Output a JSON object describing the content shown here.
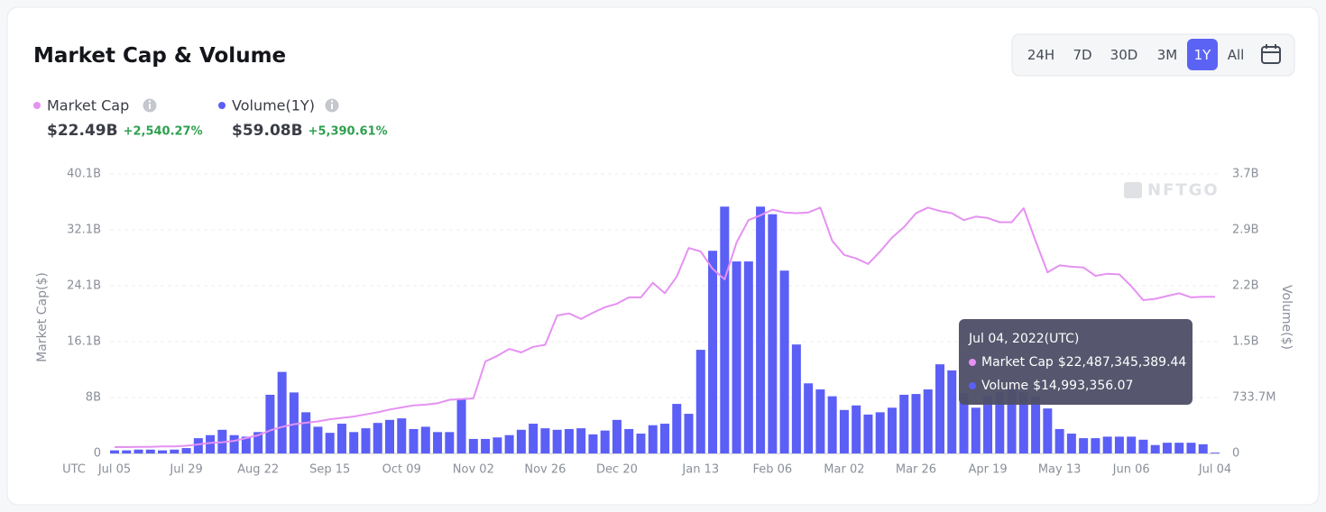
{
  "header": {
    "title": "Market Cap & Volume",
    "periods": [
      "24H",
      "7D",
      "30D",
      "3M",
      "1Y",
      "All"
    ],
    "active_period": "1Y"
  },
  "summary": {
    "market_cap": {
      "value": "$22.49B",
      "change": "+2,540.27%"
    },
    "volume": {
      "label": "Volume(1Y)",
      "value": "$59.08B",
      "change": "+5,390.61%"
    }
  },
  "chart_data": {
    "type": "combo",
    "y_label": "Market Cap($)",
    "y2_label": "Volume($)",
    "x_label": "UTC",
    "watermark": "NFTGO",
    "grid": true,
    "categories": [
      "Jul 05",
      null,
      null,
      null,
      null,
      null,
      "Jul 29",
      null,
      null,
      null,
      null,
      null,
      "Aug 22",
      null,
      null,
      null,
      null,
      null,
      "Sep 15",
      null,
      null,
      null,
      null,
      null,
      "Oct 09",
      null,
      null,
      null,
      null,
      null,
      "Nov 02",
      null,
      null,
      null,
      null,
      null,
      "Nov 26",
      null,
      null,
      null,
      null,
      null,
      "Dec 20",
      null,
      null,
      null,
      null,
      null,
      null,
      "Jan 13",
      null,
      null,
      null,
      null,
      null,
      "Feb 06",
      null,
      null,
      null,
      null,
      null,
      "Mar 02",
      null,
      null,
      null,
      null,
      null,
      "Mar 26",
      null,
      null,
      null,
      null,
      null,
      "Apr 19",
      null,
      null,
      null,
      null,
      null,
      "May 13",
      null,
      null,
      null,
      null,
      null,
      "Jun 06",
      null,
      null,
      null,
      null,
      null,
      null,
      "Jul 04"
    ],
    "ylim": [
      0,
      40.125
    ],
    "yticks": [
      {
        "value": 0,
        "label": "0"
      },
      {
        "value": 8.025,
        "label": "8B"
      },
      {
        "value": 16.05,
        "label": "16.1B"
      },
      {
        "value": 24.075,
        "label": "24.1B"
      },
      {
        "value": 32.1,
        "label": "32.1B"
      },
      {
        "value": 40.125,
        "label": "40.1B"
      }
    ],
    "y2lim": [
      0,
      3.6685
    ],
    "y2ticks": [
      {
        "value": 0,
        "label": "0"
      },
      {
        "value": 0.7337,
        "label": "733.7M"
      },
      {
        "value": 1.4674,
        "label": "1.5B"
      },
      {
        "value": 2.2011,
        "label": "2.2B"
      },
      {
        "value": 2.9348,
        "label": "2.9B"
      },
      {
        "value": 3.6685,
        "label": "3.7B"
      }
    ],
    "series": [
      {
        "name": "Market Cap",
        "type": "line",
        "color": "#e591f2",
        "values": [
          0.9,
          0.9,
          0.95,
          0.95,
          1.0,
          1.0,
          1.1,
          1.3,
          1.5,
          1.6,
          1.8,
          2.2,
          2.6,
          3.3,
          3.8,
          4.2,
          4.4,
          4.6,
          4.9,
          5.1,
          5.3,
          5.6,
          5.9,
          6.3,
          6.6,
          6.9,
          7.0,
          7.2,
          7.7,
          7.8,
          7.9,
          13.2,
          14.0,
          15.0,
          14.5,
          15.3,
          15.6,
          19.8,
          20.1,
          19.3,
          20.2,
          21.0,
          21.5,
          22.4,
          22.4,
          24.5,
          23.0,
          25.4,
          29.5,
          29.0,
          26.5,
          25.0,
          30.3,
          33.5,
          34.2,
          35.0,
          34.6,
          34.5,
          34.6,
          35.3,
          30.5,
          28.5,
          28.0,
          27.2,
          29.0,
          31.0,
          32.5,
          34.5,
          35.3,
          34.8,
          34.5,
          33.5,
          34.0,
          33.8,
          33.2,
          33.2,
          35.2,
          30.5,
          26.0,
          27.0,
          26.8,
          26.7,
          25.5,
          25.8,
          25.7,
          24.0,
          22.0,
          22.2,
          22.6,
          23.0,
          22.4,
          22.5,
          22.49
        ]
      },
      {
        "name": "Volume",
        "type": "bar",
        "axis": "y2",
        "color": "#5b5ff6",
        "values": [
          0.04,
          0.04,
          0.05,
          0.05,
          0.04,
          0.05,
          0.07,
          0.2,
          0.24,
          0.31,
          0.24,
          0.22,
          0.28,
          0.77,
          1.07,
          0.8,
          0.54,
          0.35,
          0.27,
          0.39,
          0.28,
          0.33,
          0.4,
          0.44,
          0.46,
          0.32,
          0.35,
          0.28,
          0.28,
          0.72,
          0.19,
          0.19,
          0.21,
          0.24,
          0.31,
          0.39,
          0.33,
          0.31,
          0.32,
          0.33,
          0.25,
          0.3,
          0.44,
          0.32,
          0.26,
          0.37,
          0.39,
          0.65,
          0.52,
          1.36,
          2.66,
          3.24,
          2.52,
          2.52,
          3.24,
          3.14,
          2.4,
          1.43,
          0.92,
          0.84,
          0.75,
          0.57,
          0.63,
          0.51,
          0.54,
          0.6,
          0.77,
          0.78,
          0.84,
          1.17,
          1.09,
          0.79,
          0.6,
          0.75,
          0.8,
          0.85,
          0.8,
          0.75,
          0.59,
          0.32,
          0.26,
          0.2,
          0.2,
          0.22,
          0.22,
          0.22,
          0.18,
          0.11,
          0.14,
          0.14,
          0.14,
          0.12,
          0.01
        ]
      }
    ],
    "tooltip": {
      "title": "Jul 04, 2022(UTC)",
      "values": [
        "$22,487,345,389.44",
        "$14,993,356.07"
      ]
    }
  }
}
